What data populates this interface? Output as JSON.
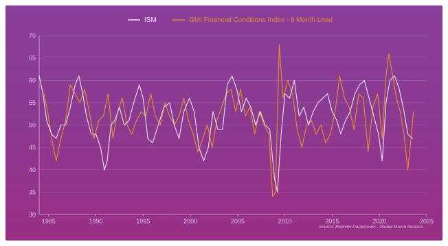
{
  "chart_data": {
    "type": "line",
    "title": "",
    "xlabel": "",
    "ylabel": "",
    "xlim": [
      1984,
      2025
    ],
    "ylim": [
      30,
      70
    ],
    "x_ticks": [
      "1985",
      "1990",
      "1995",
      "2000",
      "2005",
      "2010",
      "2015",
      "2020",
      "2025"
    ],
    "y_ticks": [
      "30",
      "35",
      "40",
      "45",
      "50",
      "55",
      "60",
      "65",
      "70"
    ],
    "grid": true,
    "legend_position": "top-center",
    "source_note": "Source: Refinitiv Datastream - Global Macro Investor",
    "series": [
      {
        "name": "ISM",
        "color": "#f1e4f4",
        "points": [
          [
            1984.0,
            61
          ],
          [
            1984.4,
            57
          ],
          [
            1984.8,
            51
          ],
          [
            1985.3,
            48
          ],
          [
            1985.8,
            47
          ],
          [
            1986.3,
            50
          ],
          [
            1986.8,
            50
          ],
          [
            1987.3,
            54
          ],
          [
            1987.8,
            59
          ],
          [
            1988.2,
            61
          ],
          [
            1988.6,
            57
          ],
          [
            1989.0,
            52
          ],
          [
            1989.5,
            48
          ],
          [
            1990.0,
            48
          ],
          [
            1990.5,
            45
          ],
          [
            1990.9,
            40
          ],
          [
            1991.2,
            42
          ],
          [
            1991.6,
            50
          ],
          [
            1992.0,
            51
          ],
          [
            1992.5,
            54
          ],
          [
            1993.0,
            50
          ],
          [
            1993.5,
            51
          ],
          [
            1994.0,
            55
          ],
          [
            1994.6,
            59
          ],
          [
            1995.0,
            56
          ],
          [
            1995.5,
            47
          ],
          [
            1996.0,
            46
          ],
          [
            1996.6,
            50
          ],
          [
            1997.2,
            54
          ],
          [
            1997.8,
            55
          ],
          [
            1998.3,
            50
          ],
          [
            1998.8,
            47
          ],
          [
            1999.3,
            53
          ],
          [
            1999.9,
            56
          ],
          [
            2000.4,
            53
          ],
          [
            2000.9,
            45
          ],
          [
            2001.4,
            42
          ],
          [
            2001.9,
            45
          ],
          [
            2002.4,
            53
          ],
          [
            2002.9,
            49
          ],
          [
            2003.4,
            49
          ],
          [
            2003.9,
            59
          ],
          [
            2004.4,
            61
          ],
          [
            2004.9,
            58
          ],
          [
            2005.4,
            53
          ],
          [
            2005.9,
            56
          ],
          [
            2006.4,
            54
          ],
          [
            2006.9,
            50
          ],
          [
            2007.4,
            53
          ],
          [
            2007.9,
            50
          ],
          [
            2008.4,
            49
          ],
          [
            2008.9,
            38
          ],
          [
            2009.2,
            35
          ],
          [
            2009.6,
            48
          ],
          [
            2010.0,
            57
          ],
          [
            2010.5,
            56
          ],
          [
            2011.0,
            60
          ],
          [
            2011.5,
            52
          ],
          [
            2012.0,
            54
          ],
          [
            2012.5,
            50
          ],
          [
            2013.0,
            53
          ],
          [
            2013.5,
            55
          ],
          [
            2014.0,
            56
          ],
          [
            2014.5,
            57
          ],
          [
            2015.0,
            53
          ],
          [
            2015.5,
            51
          ],
          [
            2015.9,
            48
          ],
          [
            2016.4,
            51
          ],
          [
            2016.9,
            53
          ],
          [
            2017.4,
            57
          ],
          [
            2017.9,
            59
          ],
          [
            2018.4,
            60
          ],
          [
            2018.9,
            56
          ],
          [
            2019.4,
            52
          ],
          [
            2019.9,
            48
          ],
          [
            2020.3,
            42
          ],
          [
            2020.7,
            55
          ],
          [
            2021.1,
            60
          ],
          [
            2021.6,
            61
          ],
          [
            2022.1,
            58
          ],
          [
            2022.6,
            53
          ],
          [
            2023.0,
            48
          ],
          [
            2023.5,
            47
          ]
        ]
      },
      {
        "name": "GMI Financial Conditions Index - 9 Month Lead",
        "color": "#e08a2c",
        "points": [
          [
            1984.5,
            57
          ],
          [
            1984.9,
            53
          ],
          [
            1985.4,
            46
          ],
          [
            1985.8,
            42
          ],
          [
            1986.3,
            47
          ],
          [
            1986.8,
            51
          ],
          [
            1987.3,
            59
          ],
          [
            1987.8,
            57
          ],
          [
            1988.3,
            55
          ],
          [
            1988.8,
            58
          ],
          [
            1989.3,
            53
          ],
          [
            1989.8,
            47
          ],
          [
            1990.3,
            51
          ],
          [
            1990.8,
            52
          ],
          [
            1991.3,
            57
          ],
          [
            1991.8,
            47
          ],
          [
            1992.3,
            53
          ],
          [
            1992.8,
            56
          ],
          [
            1993.3,
            50
          ],
          [
            1993.8,
            48
          ],
          [
            1994.3,
            51
          ],
          [
            1994.8,
            53
          ],
          [
            1995.3,
            52
          ],
          [
            1995.8,
            57
          ],
          [
            1996.3,
            52
          ],
          [
            1996.8,
            50
          ],
          [
            1997.3,
            55
          ],
          [
            1997.8,
            52
          ],
          [
            1998.3,
            50
          ],
          [
            1998.8,
            52
          ],
          [
            1999.3,
            56
          ],
          [
            1999.8,
            51
          ],
          [
            2000.3,
            48
          ],
          [
            2000.8,
            44
          ],
          [
            2001.3,
            47
          ],
          [
            2001.8,
            50
          ],
          [
            2002.3,
            45
          ],
          [
            2002.8,
            51
          ],
          [
            2003.3,
            54
          ],
          [
            2003.8,
            57
          ],
          [
            2004.3,
            58
          ],
          [
            2004.8,
            53
          ],
          [
            2005.3,
            58
          ],
          [
            2005.8,
            52
          ],
          [
            2006.3,
            54
          ],
          [
            2006.8,
            48
          ],
          [
            2007.3,
            53
          ],
          [
            2007.8,
            50
          ],
          [
            2008.3,
            48
          ],
          [
            2008.7,
            34
          ],
          [
            2009.0,
            35
          ],
          [
            2009.4,
            68
          ],
          [
            2009.8,
            56
          ],
          [
            2010.3,
            60
          ],
          [
            2010.8,
            57
          ],
          [
            2011.3,
            49
          ],
          [
            2011.8,
            45
          ],
          [
            2012.3,
            50
          ],
          [
            2012.8,
            51
          ],
          [
            2013.3,
            48
          ],
          [
            2013.8,
            50
          ],
          [
            2014.3,
            46
          ],
          [
            2014.8,
            48
          ],
          [
            2015.3,
            53
          ],
          [
            2015.8,
            61
          ],
          [
            2016.3,
            56
          ],
          [
            2016.8,
            54
          ],
          [
            2017.3,
            49
          ],
          [
            2017.8,
            57
          ],
          [
            2018.3,
            56
          ],
          [
            2018.8,
            44
          ],
          [
            2019.3,
            54
          ],
          [
            2019.8,
            57
          ],
          [
            2020.3,
            47
          ],
          [
            2020.7,
            61
          ],
          [
            2021.0,
            66
          ],
          [
            2021.4,
            61
          ],
          [
            2021.8,
            56
          ],
          [
            2022.2,
            53
          ],
          [
            2022.6,
            48
          ],
          [
            2023.0,
            40
          ],
          [
            2023.3,
            46
          ],
          [
            2023.6,
            53
          ]
        ]
      }
    ]
  }
}
